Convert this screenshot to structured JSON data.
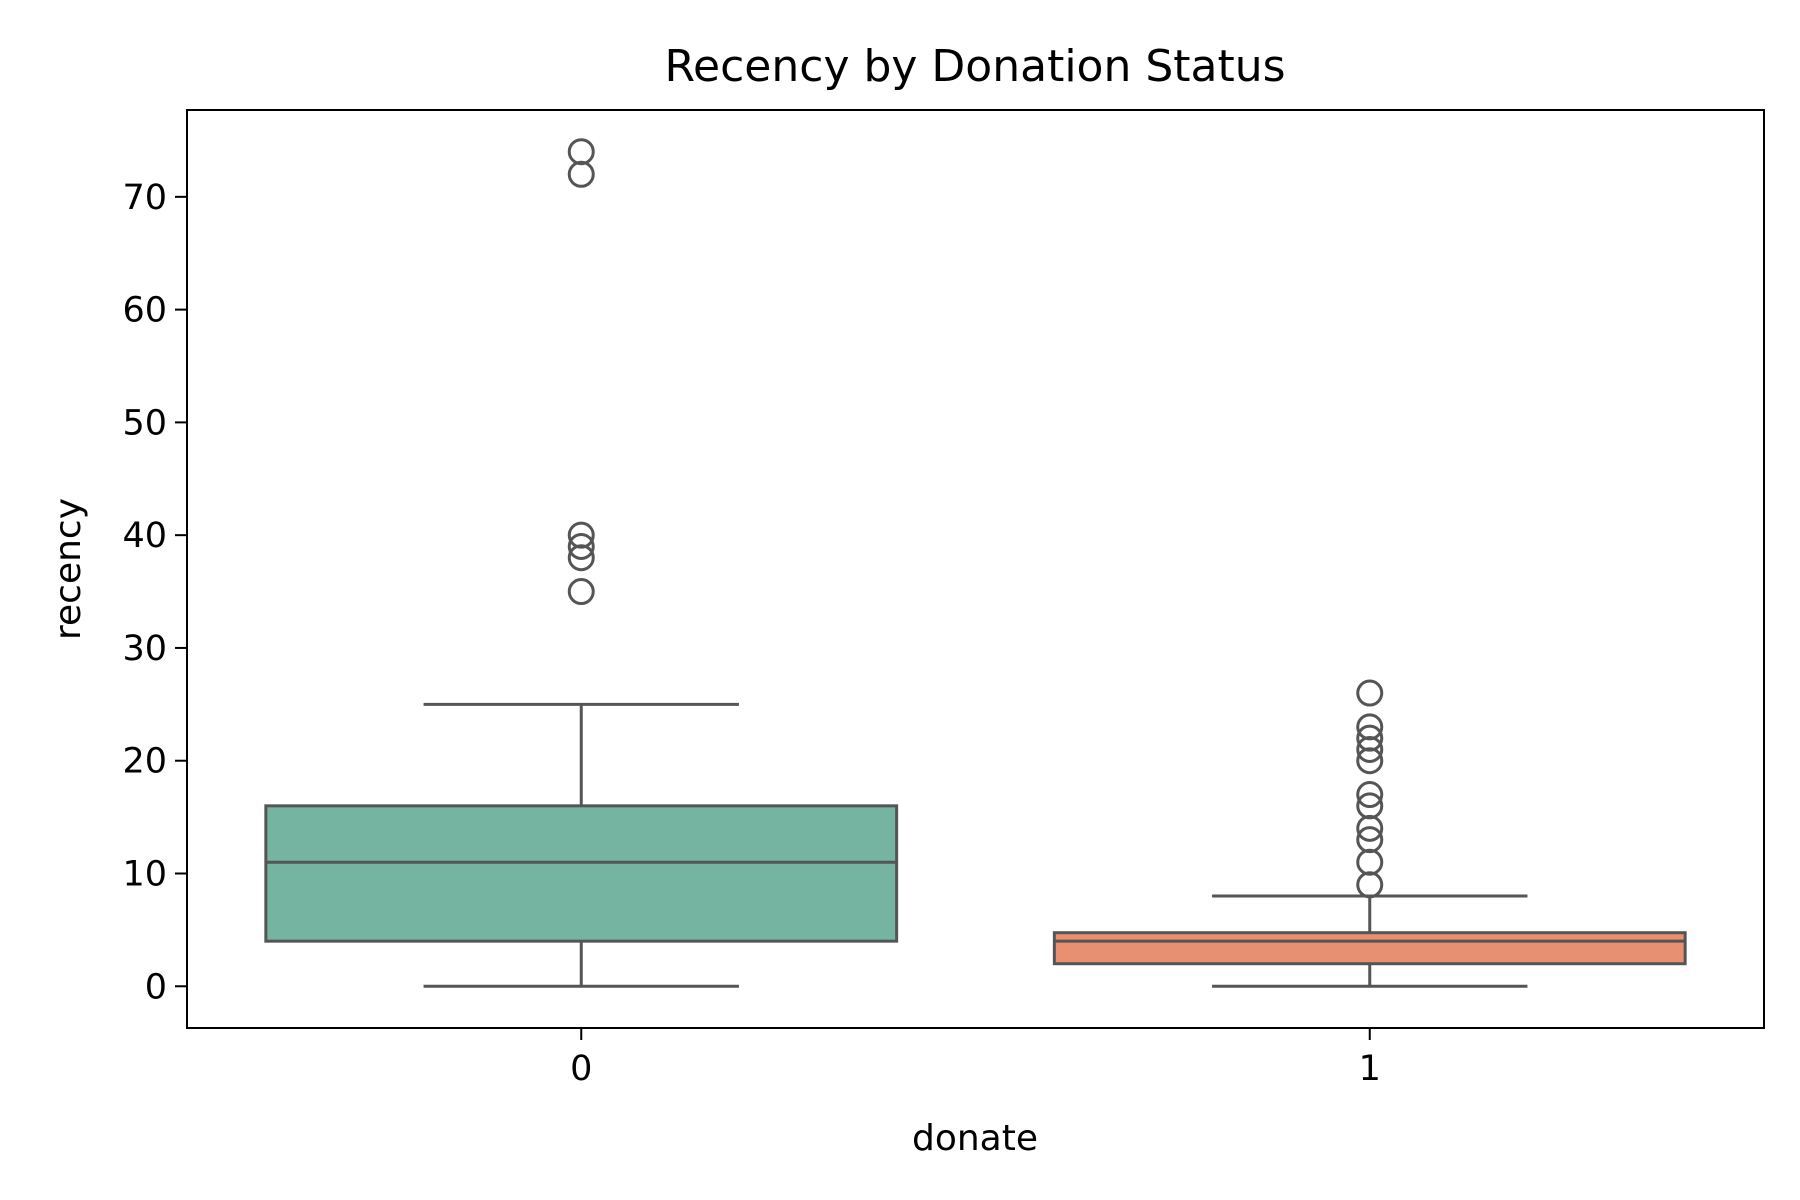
{
  "chart_data": {
    "type": "box",
    "title": "Recency by Donation Status",
    "xlabel": "donate",
    "ylabel": "recency",
    "categories": [
      "0",
      "1"
    ],
    "ylim": [
      -3.7,
      77.7
    ],
    "yticks": [
      0,
      10,
      20,
      30,
      40,
      50,
      60,
      70
    ],
    "grid": false,
    "legend": "none",
    "boxes": [
      {
        "category": "0",
        "color": "#74b4a0",
        "whisker_low": 0,
        "q1": 4,
        "median": 11,
        "q3": 16,
        "whisker_high": 25,
        "outliers": [
          35,
          38,
          39,
          40,
          72,
          74
        ]
      },
      {
        "category": "1",
        "color": "#e99072",
        "whisker_low": 0,
        "q1": 2,
        "median": 4,
        "q3": 4.75,
        "whisker_high": 8,
        "outliers": [
          9,
          11,
          13,
          14,
          16,
          17,
          20,
          21,
          22,
          23,
          26
        ]
      }
    ],
    "line_color": "#555555"
  }
}
